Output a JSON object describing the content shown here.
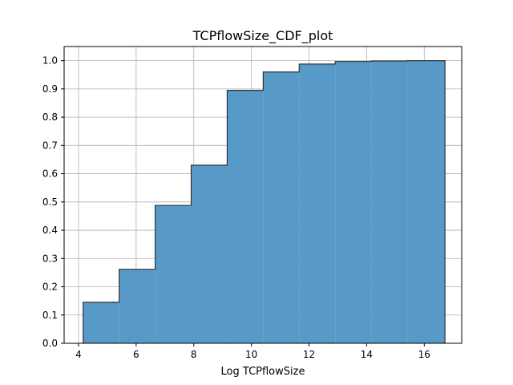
{
  "chart_data": {
    "type": "bar",
    "title": "TCPflowSize_CDF_plot",
    "xlabel": "Log TCPflowSize",
    "ylabel": "",
    "xlim": [
      3.5,
      17.3
    ],
    "ylim": [
      0,
      1.05
    ],
    "xticks": [
      4,
      6,
      8,
      10,
      12,
      14,
      16
    ],
    "yticks": [
      0.0,
      0.1,
      0.2,
      0.3,
      0.4,
      0.5,
      0.6,
      0.7,
      0.8,
      0.9,
      1.0
    ],
    "grid": true,
    "bar_color": "#5799c7",
    "edge_color": "#333333",
    "bins": [
      {
        "x0": 4.16,
        "x1": 5.41,
        "value": 0.145
      },
      {
        "x0": 5.41,
        "x1": 6.66,
        "value": 0.262
      },
      {
        "x0": 6.66,
        "x1": 7.91,
        "value": 0.488
      },
      {
        "x0": 7.91,
        "x1": 9.16,
        "value": 0.63
      },
      {
        "x0": 9.16,
        "x1": 10.41,
        "value": 0.895
      },
      {
        "x0": 10.41,
        "x1": 11.66,
        "value": 0.96
      },
      {
        "x0": 11.66,
        "x1": 12.91,
        "value": 0.988
      },
      {
        "x0": 12.91,
        "x1": 14.16,
        "value": 0.997
      },
      {
        "x0": 14.16,
        "x1": 15.41,
        "value": 0.999
      },
      {
        "x0": 15.41,
        "x1": 16.72,
        "value": 1.0
      }
    ]
  }
}
